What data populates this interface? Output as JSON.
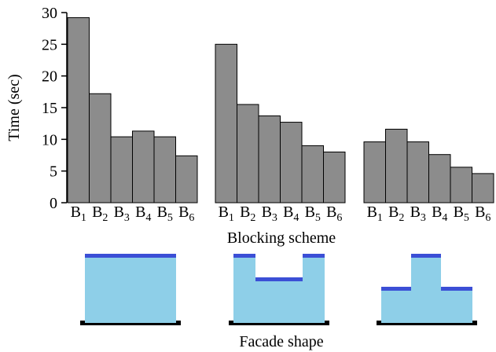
{
  "chart_data": {
    "type": "bar",
    "ylabel": "Time (sec)",
    "xlabel": "Blocking scheme",
    "bottom_label": "Facade shape",
    "ylim": [
      0,
      30
    ],
    "yticks": [
      0,
      5,
      10,
      15,
      20,
      25,
      30
    ],
    "categories": [
      "B1",
      "B2",
      "B3",
      "B4",
      "B5",
      "B6"
    ],
    "groups": [
      {
        "values": [
          29.2,
          17.2,
          10.4,
          11.3,
          10.4,
          7.4
        ],
        "facade": "flat"
      },
      {
        "values": [
          25.0,
          15.5,
          13.7,
          12.7,
          9.0,
          8.0
        ],
        "facade": "u-shape"
      },
      {
        "values": [
          9.6,
          11.6,
          9.6,
          7.6,
          5.6,
          4.6
        ],
        "facade": "raised-center"
      }
    ],
    "colors": {
      "bar_fill": "#8c8c8c",
      "bar_stroke": "#000000",
      "facade_fill": "#8ecfe8",
      "facade_roof": "#3b4fd6",
      "ground": "#000000"
    }
  }
}
